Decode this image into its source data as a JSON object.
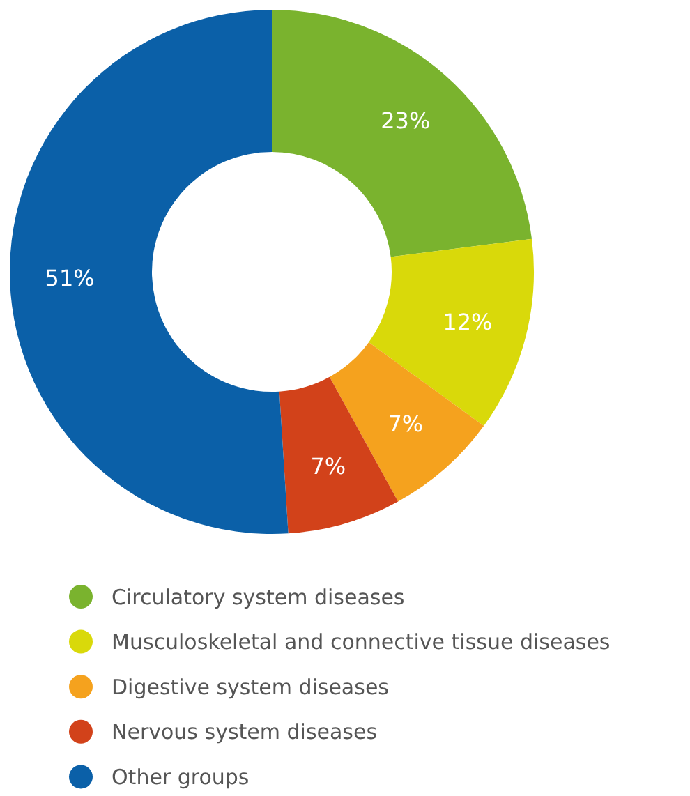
{
  "chart_data": {
    "type": "donut",
    "categories": [
      "Circulatory system diseases",
      "Musculoskeletal and connective tissue diseases",
      "Digestive system diseases",
      "Nervous system diseases",
      "Other groups"
    ],
    "values": [
      23,
      12,
      7,
      7,
      51
    ],
    "value_labels": [
      "23%",
      "12%",
      "7%",
      "7%",
      "51%"
    ],
    "colors": [
      "#7ab32e",
      "#d9d90a",
      "#f5a21e",
      "#d2421a",
      "#0b60a8"
    ],
    "legend": "bottom"
  }
}
